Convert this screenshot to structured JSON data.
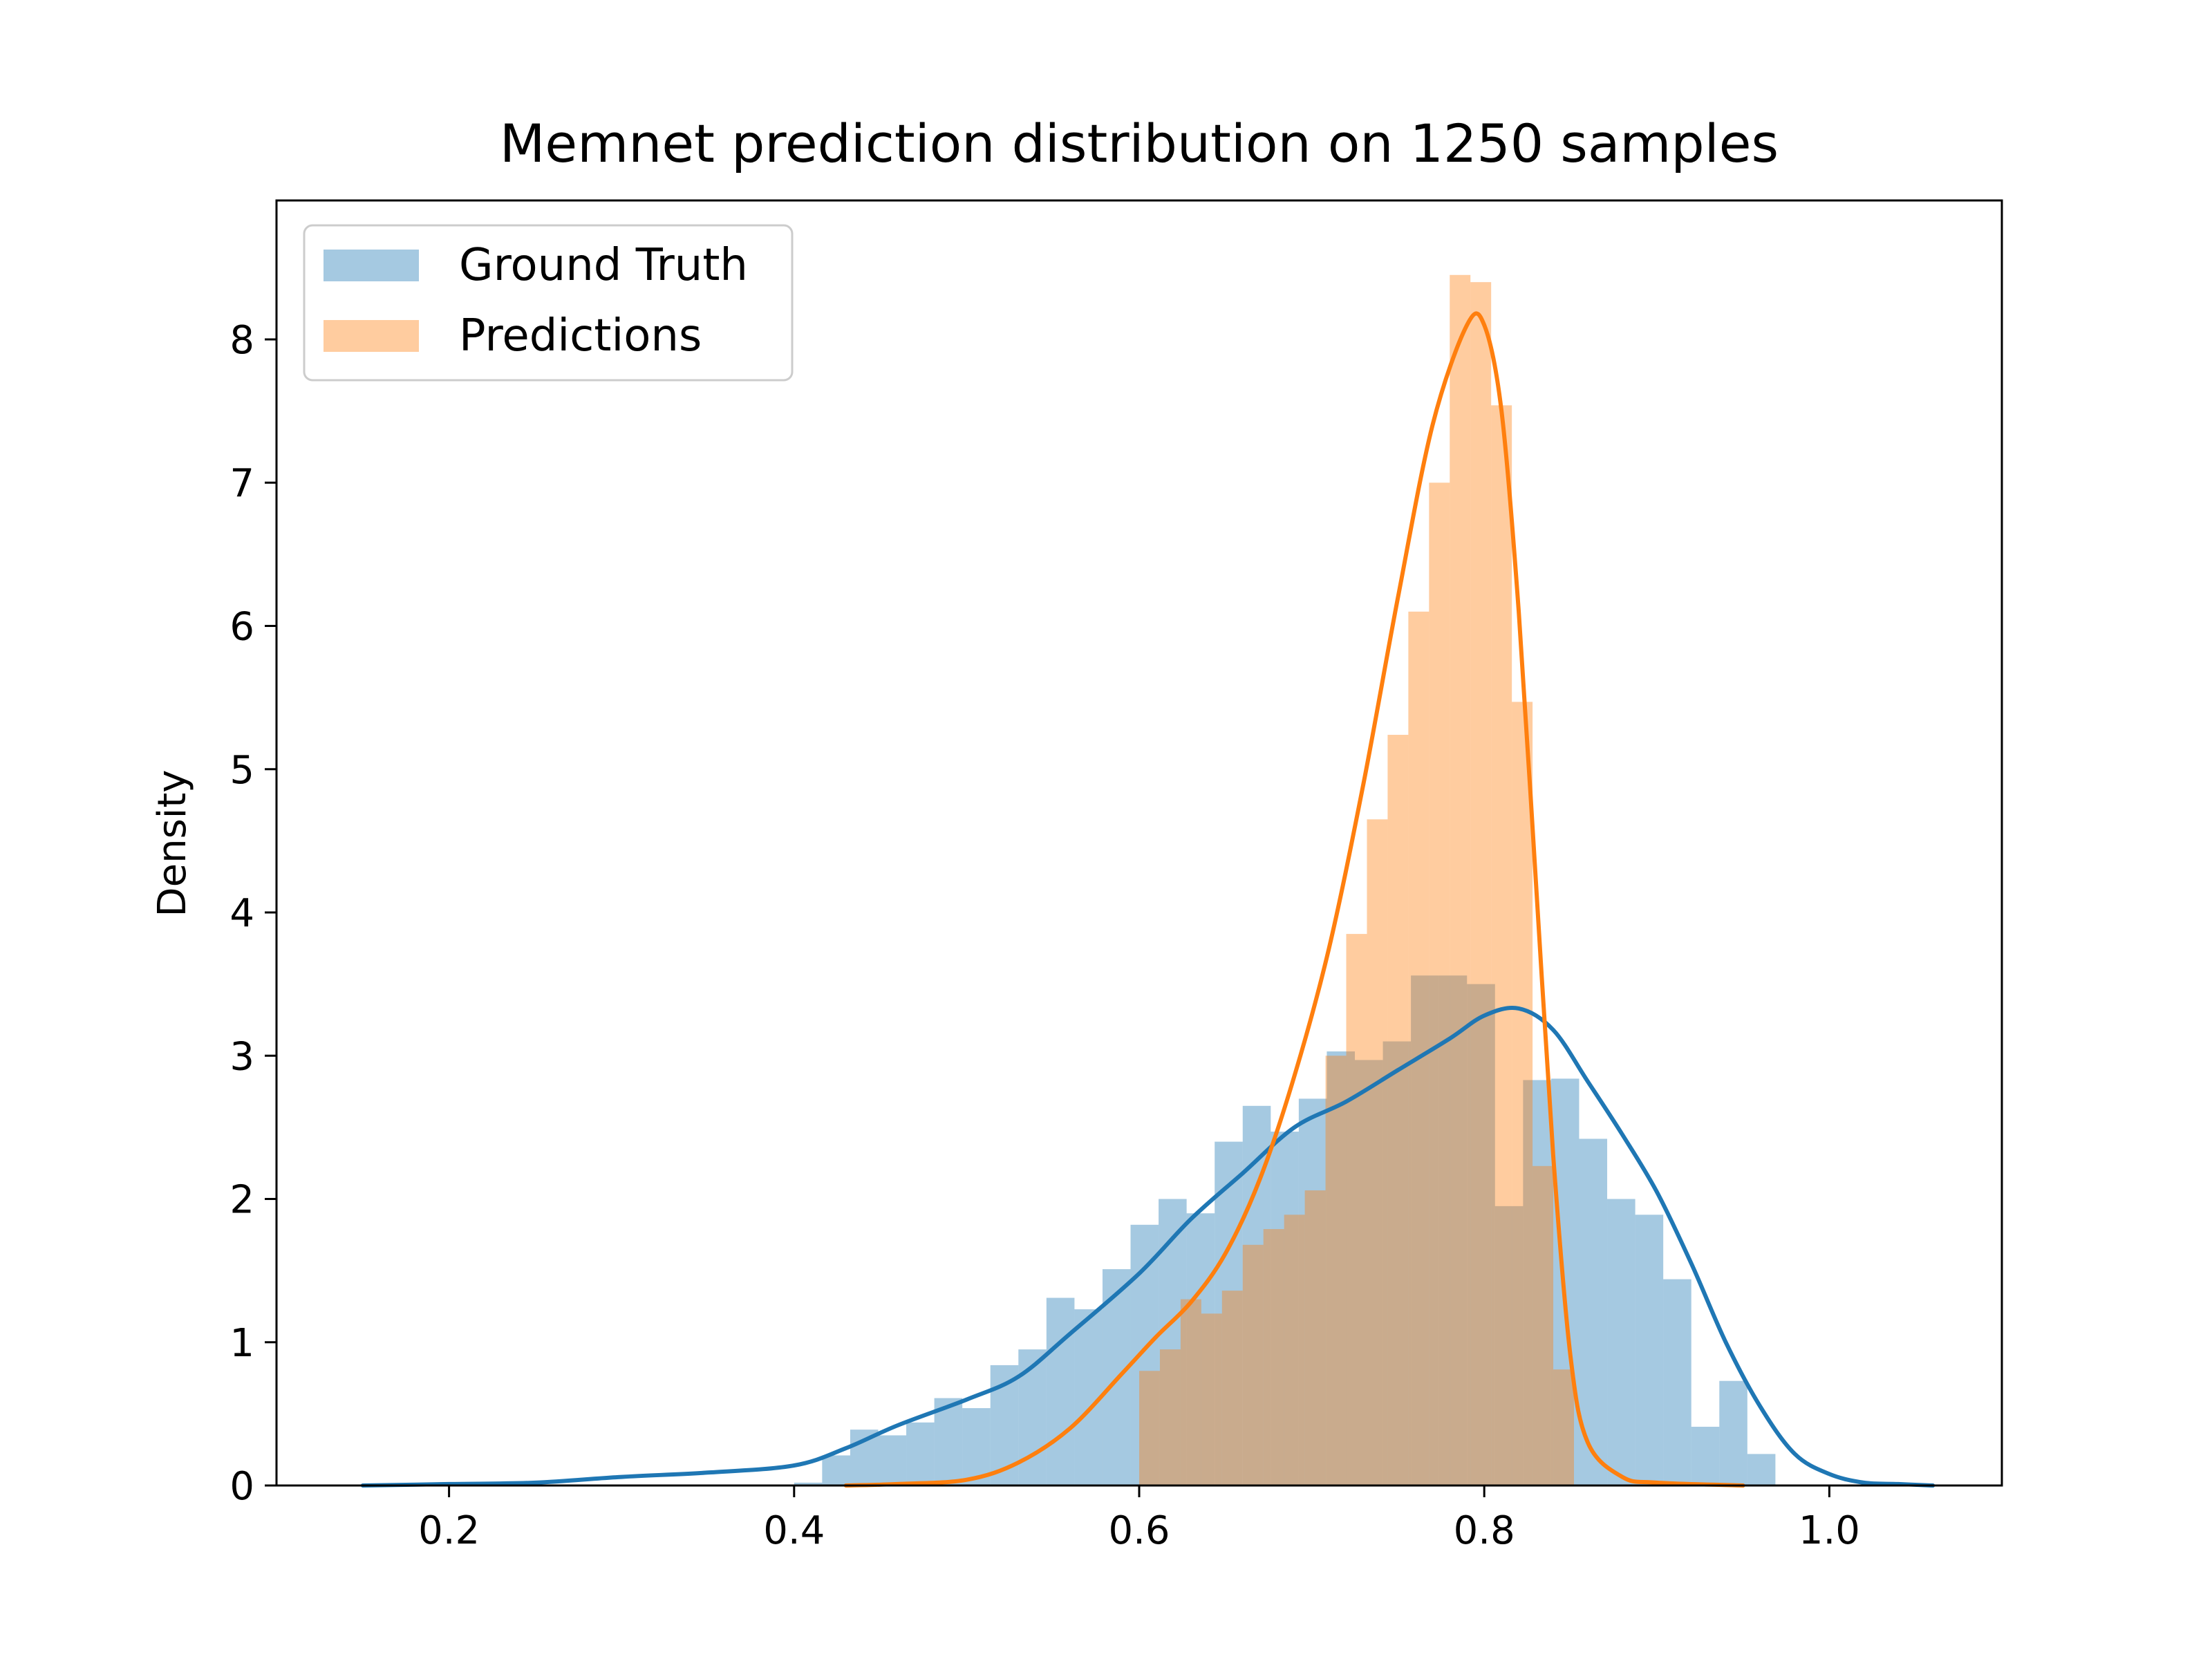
{
  "chart_data": {
    "type": "histogram",
    "title": "Memnet prediction distribution on 1250 samples",
    "xlabel": "",
    "ylabel": "Density",
    "xlim": [
      0.1,
      1.1
    ],
    "ylim": [
      0,
      8.97
    ],
    "xticks": [
      {
        "value": 0.2,
        "label": "0.2"
      },
      {
        "value": 0.4,
        "label": "0.4"
      },
      {
        "value": 0.6,
        "label": "0.6"
      },
      {
        "value": 0.8,
        "label": "0.8"
      },
      {
        "value": 1.0,
        "label": "1.0"
      }
    ],
    "yticks": [
      {
        "value": 0,
        "label": "0"
      },
      {
        "value": 1,
        "label": "1"
      },
      {
        "value": 2,
        "label": "2"
      },
      {
        "value": 3,
        "label": "3"
      },
      {
        "value": 4,
        "label": "4"
      },
      {
        "value": 5,
        "label": "5"
      },
      {
        "value": 6,
        "label": "6"
      },
      {
        "value": 7,
        "label": "7"
      },
      {
        "value": 8,
        "label": "8"
      }
    ],
    "grid": false,
    "legend": {
      "position": "upper-left"
    },
    "series": [
      {
        "name": "Ground Truth",
        "color": "#1f77b4",
        "bins": {
          "start": 0.4,
          "width": 0.01625,
          "heights": [
            0.02,
            0.21,
            0.39,
            0.35,
            0.44,
            0.61,
            0.54,
            0.84,
            0.95,
            1.31,
            1.23,
            1.51,
            1.82,
            2.0,
            1.9,
            2.4,
            2.65,
            2.47,
            2.7,
            3.03,
            2.97,
            3.1,
            3.56,
            3.56,
            3.5,
            1.95,
            2.83,
            2.84,
            2.42,
            2.0,
            1.89,
            1.44,
            0.41,
            0.73,
            0.22
          ]
        },
        "kde": {
          "x": [
            0.15,
            0.2,
            0.25,
            0.3,
            0.35,
            0.4,
            0.43,
            0.46,
            0.5,
            0.53,
            0.56,
            0.6,
            0.63,
            0.66,
            0.69,
            0.72,
            0.75,
            0.78,
            0.8,
            0.82,
            0.84,
            0.86,
            0.88,
            0.9,
            0.92,
            0.94,
            0.96,
            0.98,
            1.0,
            1.02,
            1.04,
            1.06
          ],
          "y": [
            0.0,
            0.01,
            0.02,
            0.06,
            0.09,
            0.14,
            0.26,
            0.42,
            0.6,
            0.76,
            1.06,
            1.48,
            1.86,
            2.18,
            2.5,
            2.68,
            2.9,
            3.12,
            3.28,
            3.33,
            3.18,
            2.82,
            2.45,
            2.05,
            1.55,
            1.0,
            0.55,
            0.22,
            0.08,
            0.02,
            0.01,
            0.0
          ]
        }
      },
      {
        "name": "Predictions",
        "color": "#ff7f0e",
        "bins": {
          "start": 0.6,
          "width": 0.012,
          "heights": [
            0.8,
            0.95,
            1.3,
            1.2,
            1.36,
            1.68,
            1.79,
            1.89,
            2.06,
            3.0,
            3.85,
            4.65,
            5.24,
            6.1,
            7.0,
            8.45,
            8.4,
            7.54,
            5.47,
            2.23,
            0.81
          ]
        },
        "kde": {
          "x": [
            0.43,
            0.46,
            0.5,
            0.53,
            0.56,
            0.59,
            0.61,
            0.63,
            0.65,
            0.67,
            0.69,
            0.71,
            0.73,
            0.75,
            0.77,
            0.79,
            0.8,
            0.81,
            0.82,
            0.83,
            0.84,
            0.85,
            0.86,
            0.88,
            0.9,
            0.95
          ],
          "y": [
            0.0,
            0.01,
            0.04,
            0.16,
            0.4,
            0.78,
            1.04,
            1.28,
            1.62,
            2.14,
            2.86,
            3.75,
            4.9,
            6.2,
            7.4,
            8.1,
            8.1,
            7.5,
            6.1,
            4.2,
            2.3,
            0.9,
            0.3,
            0.06,
            0.02,
            0.0
          ]
        }
      }
    ]
  }
}
